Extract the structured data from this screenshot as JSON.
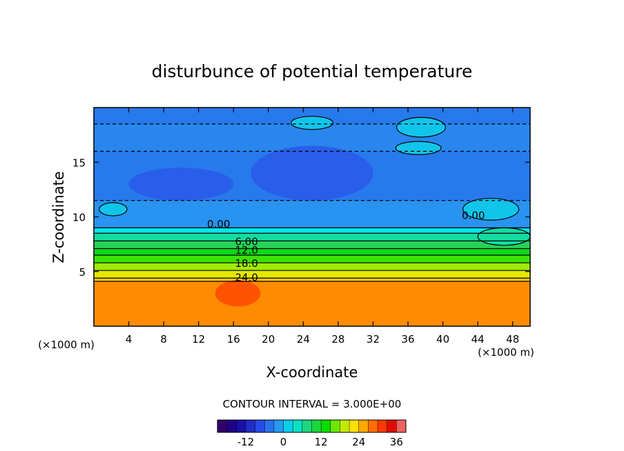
{
  "chart_data": {
    "type": "heatmap",
    "title": "disturbunce of potential temperature",
    "xlabel": "X-coordinate",
    "ylabel": "Z-coordinate",
    "x_unit_label": "(×1000 m)",
    "z_unit_label": "(×1000 m)",
    "xlim": [
      0,
      50
    ],
    "ylim": [
      0,
      20
    ],
    "x_ticks": [
      4,
      8,
      12,
      16,
      20,
      24,
      28,
      32,
      36,
      40,
      44,
      48
    ],
    "y_ticks": [
      5,
      10,
      15
    ],
    "contour_interval_text": "CONTOUR INTERVAL = 3.000E+00",
    "contour_labels": [
      {
        "text": "0.00",
        "x": 14.3,
        "z": 9.4
      },
      {
        "text": "0.00",
        "x": 43.5,
        "z": 10.2
      },
      {
        "text": "6.00",
        "x": 17.5,
        "z": 7.8
      },
      {
        "text": "12.0",
        "x": 17.5,
        "z": 7.0
      },
      {
        "text": "18.0",
        "x": 17.5,
        "z": 5.8
      },
      {
        "text": "24.0",
        "x": 17.5,
        "z": 4.5
      }
    ],
    "layers": [
      {
        "z0": 0.0,
        "z1": 4.1,
        "value": 27
      },
      {
        "z0": 4.1,
        "z1": 4.4,
        "value": 24
      },
      {
        "z0": 4.4,
        "z1": 5.1,
        "value": 21
      },
      {
        "z0": 5.1,
        "z1": 5.8,
        "value": 18
      },
      {
        "z0": 5.8,
        "z1": 6.5,
        "value": 15
      },
      {
        "z0": 6.5,
        "z1": 7.1,
        "value": 12
      },
      {
        "z0": 7.1,
        "z1": 7.8,
        "value": 9
      },
      {
        "z0": 7.8,
        "z1": 8.5,
        "value": 6
      },
      {
        "z0": 8.5,
        "z1": 9.0,
        "value": 3
      },
      {
        "z0": 9.0,
        "z1": 11.5,
        "value": -2
      },
      {
        "z0": 11.5,
        "z1": 16.0,
        "value": -4
      },
      {
        "z0": 16.0,
        "z1": 18.5,
        "value": -3
      },
      {
        "z0": 18.5,
        "z1": 20.0,
        "value": -4
      }
    ],
    "blobs": [
      {
        "x": 16.5,
        "z": 3.0,
        "rx": 2.6,
        "rz": 1.2,
        "value": 30
      },
      {
        "x": 25.0,
        "z": 18.6,
        "rx": 2.4,
        "rz": 0.6,
        "value": 1
      },
      {
        "x": 37.5,
        "z": 18.2,
        "rx": 2.8,
        "rz": 0.9,
        "value": 1
      },
      {
        "x": 37.2,
        "z": 16.3,
        "rx": 2.6,
        "rz": 0.6,
        "value": 1
      },
      {
        "x": 45.5,
        "z": 10.7,
        "rx": 3.2,
        "rz": 1.0,
        "value": 1
      },
      {
        "x": 47.0,
        "z": 8.2,
        "rx": 3.0,
        "rz": 0.8,
        "value": 6
      },
      {
        "x": 2.2,
        "z": 10.7,
        "rx": 1.6,
        "rz": 0.6,
        "value": 1
      },
      {
        "x": 25.0,
        "z": 14.0,
        "rx": 7.0,
        "rz": 2.5,
        "value": -6
      },
      {
        "x": 10.0,
        "z": 13.0,
        "rx": 6.0,
        "rz": 1.5,
        "value": -6
      }
    ],
    "colorbar": {
      "min": -21,
      "max": 39,
      "step": 3,
      "ticks": [
        -12,
        0,
        12,
        24,
        36
      ]
    }
  }
}
